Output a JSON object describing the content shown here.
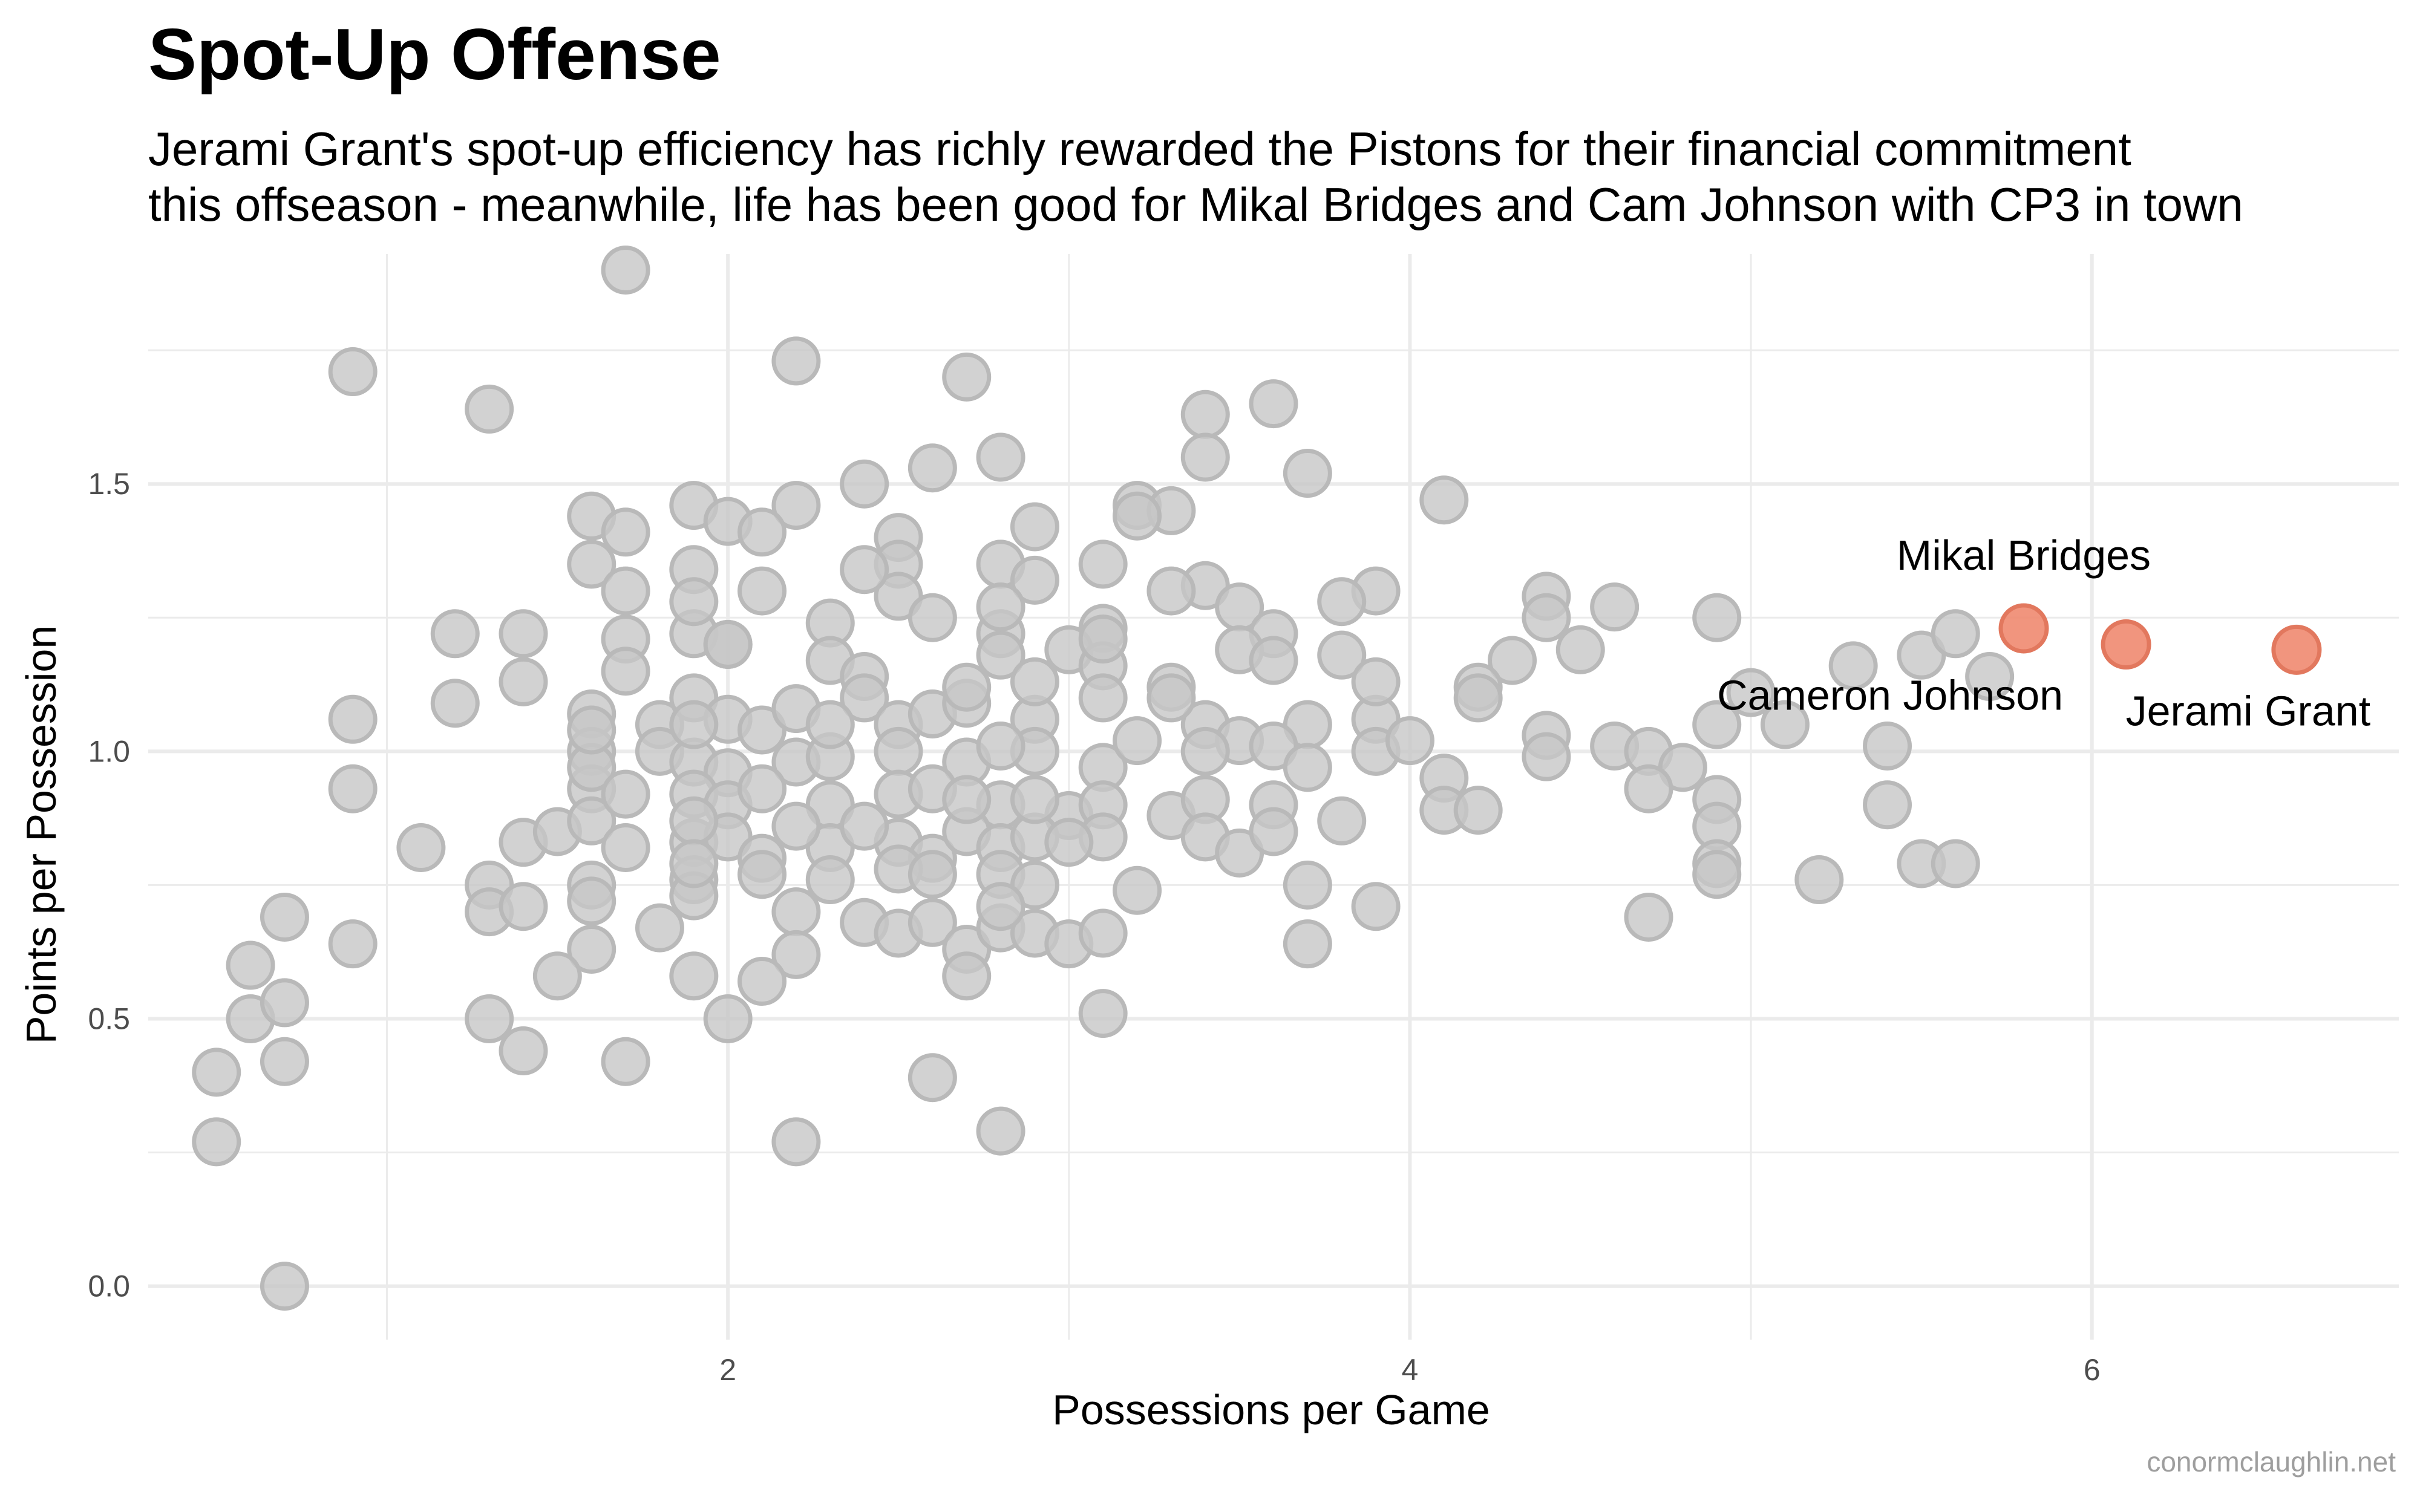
{
  "header": {
    "title": "Spot-Up Offense",
    "subtitle_line1": "Jerami Grant's spot-up efficiency has richly rewarded the Pistons for their financial commitment",
    "subtitle_line2": "this offseason - meanwhile, life has been good for Mikal Bridges and Cam Johnson with CP3 in town"
  },
  "caption": "conormclaughlin.net",
  "colors": {
    "points": "#c7c7c7",
    "point_stroke": "#b9b9b9",
    "highlight": "#f08a70",
    "highlight_stroke": "#e2785e",
    "grid": "#ebebeb",
    "axis_text": "#4d4d4d"
  },
  "chart_data": {
    "type": "scatter",
    "title": "Spot-Up Offense",
    "xlabel": "Possessions per Game",
    "ylabel": "Points per Possession",
    "xlim": [
      0.3,
      6.9
    ],
    "ylim": [
      -0.1,
      1.93
    ],
    "x_ticks": [
      2,
      4,
      6
    ],
    "y_ticks": [
      0.0,
      0.5,
      1.0,
      1.5
    ],
    "x_tick_labels": [
      "2",
      "4",
      "6"
    ],
    "y_tick_labels": [
      "0.0",
      "0.5",
      "1.0",
      "1.5"
    ],
    "grid": true,
    "legend": "none",
    "series": [
      {
        "points": [
          [
            1.7,
            1.9
          ],
          [
            0.9,
            1.71
          ],
          [
            2.2,
            1.73
          ],
          [
            1.3,
            1.64
          ],
          [
            2.7,
            1.7
          ],
          [
            3.6,
            1.65
          ],
          [
            3.4,
            1.63
          ],
          [
            2.8,
            1.55
          ],
          [
            2.4,
            1.5
          ],
          [
            2.6,
            1.53
          ],
          [
            3.4,
            1.55
          ],
          [
            3.7,
            1.52
          ],
          [
            4.1,
            1.47
          ],
          [
            1.9,
            1.46
          ],
          [
            2.0,
            1.43
          ],
          [
            2.2,
            1.46
          ],
          [
            1.6,
            1.44
          ],
          [
            1.7,
            1.41
          ],
          [
            2.1,
            1.41
          ],
          [
            2.5,
            1.4
          ],
          [
            2.9,
            1.42
          ],
          [
            3.2,
            1.46
          ],
          [
            3.3,
            1.45
          ],
          [
            3.2,
            1.44
          ],
          [
            1.6,
            1.35
          ],
          [
            1.9,
            1.34
          ],
          [
            2.5,
            1.35
          ],
          [
            2.8,
            1.35
          ],
          [
            3.1,
            1.35
          ],
          [
            3.4,
            1.31
          ],
          [
            1.7,
            1.3
          ],
          [
            2.1,
            1.3
          ],
          [
            2.5,
            1.29
          ],
          [
            2.9,
            1.32
          ],
          [
            3.3,
            1.3
          ],
          [
            3.9,
            1.3
          ],
          [
            4.4,
            1.29
          ],
          [
            4.6,
            1.27
          ],
          [
            3.5,
            1.27
          ],
          [
            3.8,
            1.28
          ],
          [
            1.2,
            1.22
          ],
          [
            1.4,
            1.22
          ],
          [
            1.7,
            1.21
          ],
          [
            1.9,
            1.22
          ],
          [
            2.3,
            1.24
          ],
          [
            2.6,
            1.25
          ],
          [
            2.8,
            1.22
          ],
          [
            3.1,
            1.23
          ],
          [
            3.6,
            1.22
          ],
          [
            4.4,
            1.25
          ],
          [
            4.9,
            1.25
          ],
          [
            1.7,
            1.15
          ],
          [
            2.0,
            1.2
          ],
          [
            2.3,
            1.17
          ],
          [
            2.4,
            1.14
          ],
          [
            2.8,
            1.18
          ],
          [
            3.0,
            1.19
          ],
          [
            3.1,
            1.16
          ],
          [
            3.5,
            1.19
          ],
          [
            3.6,
            1.17
          ],
          [
            3.8,
            1.18
          ],
          [
            4.3,
            1.17
          ],
          [
            4.5,
            1.19
          ],
          [
            5.0,
            1.11
          ],
          [
            5.3,
            1.16
          ],
          [
            5.5,
            1.18
          ],
          [
            5.6,
            1.22
          ],
          [
            5.7,
            1.14
          ],
          [
            1.4,
            1.13
          ],
          [
            1.6,
            1.07
          ],
          [
            1.8,
            1.05
          ],
          [
            1.9,
            1.1
          ],
          [
            2.0,
            1.06
          ],
          [
            2.1,
            1.04
          ],
          [
            2.2,
            1.08
          ],
          [
            2.4,
            1.1
          ],
          [
            2.5,
            1.05
          ],
          [
            2.6,
            1.07
          ],
          [
            2.7,
            1.09
          ],
          [
            2.9,
            1.06
          ],
          [
            3.1,
            1.1
          ],
          [
            3.3,
            1.12
          ],
          [
            3.4,
            1.05
          ],
          [
            3.5,
            1.02
          ],
          [
            3.7,
            1.05
          ],
          [
            3.9,
            1.06
          ],
          [
            4.2,
            1.12
          ],
          [
            4.2,
            1.1
          ],
          [
            5.1,
            1.05
          ],
          [
            0.9,
            1.06
          ],
          [
            1.2,
            1.09
          ],
          [
            1.6,
            1.0
          ],
          [
            1.8,
            1.0
          ],
          [
            1.9,
            0.98
          ],
          [
            2.0,
            0.96
          ],
          [
            2.2,
            0.98
          ],
          [
            2.3,
            0.99
          ],
          [
            2.5,
            1.0
          ],
          [
            2.7,
            0.98
          ],
          [
            2.9,
            1.0
          ],
          [
            3.1,
            0.97
          ],
          [
            3.2,
            1.02
          ],
          [
            3.4,
            1.0
          ],
          [
            3.6,
            1.01
          ],
          [
            3.7,
            0.97
          ],
          [
            3.9,
            1.0
          ],
          [
            4.0,
            1.02
          ],
          [
            4.4,
            1.03
          ],
          [
            4.4,
            0.99
          ],
          [
            4.6,
            1.01
          ],
          [
            4.7,
            1.0
          ],
          [
            4.8,
            0.97
          ],
          [
            4.9,
            1.05
          ],
          [
            5.4,
            1.01
          ],
          [
            0.9,
            0.93
          ],
          [
            1.6,
            0.93
          ],
          [
            1.9,
            0.92
          ],
          [
            2.0,
            0.9
          ],
          [
            2.1,
            0.93
          ],
          [
            2.3,
            0.9
          ],
          [
            2.5,
            0.92
          ],
          [
            2.6,
            0.93
          ],
          [
            2.8,
            0.9
          ],
          [
            3.0,
            0.88
          ],
          [
            3.1,
            0.9
          ],
          [
            3.3,
            0.88
          ],
          [
            3.4,
            0.91
          ],
          [
            3.6,
            0.9
          ],
          [
            3.8,
            0.87
          ],
          [
            4.1,
            0.95
          ],
          [
            4.1,
            0.89
          ],
          [
            4.2,
            0.89
          ],
          [
            4.7,
            0.93
          ],
          [
            4.9,
            0.91
          ],
          [
            5.4,
            0.9
          ],
          [
            1.1,
            0.82
          ],
          [
            1.4,
            0.83
          ],
          [
            1.5,
            0.85
          ],
          [
            1.6,
            0.87
          ],
          [
            1.7,
            0.82
          ],
          [
            1.9,
            0.83
          ],
          [
            2.0,
            0.84
          ],
          [
            2.1,
            0.8
          ],
          [
            2.3,
            0.82
          ],
          [
            2.5,
            0.83
          ],
          [
            2.6,
            0.8
          ],
          [
            2.7,
            0.85
          ],
          [
            2.8,
            0.82
          ],
          [
            2.9,
            0.84
          ],
          [
            3.1,
            0.84
          ],
          [
            3.4,
            0.84
          ],
          [
            3.5,
            0.81
          ],
          [
            3.6,
            0.85
          ],
          [
            4.9,
            0.86
          ],
          [
            1.3,
            0.75
          ],
          [
            1.6,
            0.75
          ],
          [
            1.9,
            0.76
          ],
          [
            2.1,
            0.77
          ],
          [
            2.3,
            0.76
          ],
          [
            2.5,
            0.78
          ],
          [
            2.6,
            0.77
          ],
          [
            2.8,
            0.77
          ],
          [
            2.9,
            0.75
          ],
          [
            3.7,
            0.75
          ],
          [
            4.9,
            0.79
          ],
          [
            4.9,
            0.77
          ],
          [
            5.2,
            0.76
          ],
          [
            5.5,
            0.79
          ],
          [
            5.6,
            0.79
          ],
          [
            1.3,
            0.7
          ],
          [
            1.4,
            0.71
          ],
          [
            1.6,
            0.72
          ],
          [
            1.8,
            0.67
          ],
          [
            1.9,
            0.73
          ],
          [
            2.2,
            0.7
          ],
          [
            2.4,
            0.68
          ],
          [
            2.5,
            0.66
          ],
          [
            2.6,
            0.68
          ],
          [
            2.7,
            0.63
          ],
          [
            2.8,
            0.67
          ],
          [
            2.9,
            0.66
          ],
          [
            3.0,
            0.64
          ],
          [
            3.1,
            0.66
          ],
          [
            3.2,
            0.74
          ],
          [
            3.7,
            0.64
          ],
          [
            3.9,
            0.71
          ],
          [
            4.7,
            0.69
          ],
          [
            0.7,
            0.69
          ],
          [
            0.9,
            0.64
          ],
          [
            1.6,
            0.63
          ],
          [
            2.2,
            0.62
          ],
          [
            2.7,
            0.58
          ],
          [
            0.6,
            0.6
          ],
          [
            0.6,
            0.5
          ],
          [
            0.7,
            0.53
          ],
          [
            0.7,
            0.42
          ],
          [
            1.3,
            0.5
          ],
          [
            1.5,
            0.58
          ],
          [
            1.9,
            0.58
          ],
          [
            2.0,
            0.5
          ],
          [
            2.1,
            0.57
          ],
          [
            3.1,
            0.51
          ],
          [
            1.4,
            0.44
          ],
          [
            1.7,
            0.42
          ],
          [
            0.5,
            0.4
          ],
          [
            2.6,
            0.39
          ],
          [
            0.5,
            0.27
          ],
          [
            2.2,
            0.27
          ],
          [
            2.8,
            0.29
          ],
          [
            0.7,
            0.0
          ],
          [
            3.9,
            1.13
          ],
          [
            2.0,
            1.2
          ],
          [
            2.8,
            1.27
          ],
          [
            3.1,
            1.21
          ],
          [
            2.7,
            1.12
          ],
          [
            2.9,
            1.13
          ],
          [
            1.9,
            1.05
          ],
          [
            2.3,
            1.05
          ],
          [
            2.8,
            1.01
          ],
          [
            3.3,
            1.1
          ],
          [
            1.9,
            0.87
          ],
          [
            2.4,
            0.86
          ],
          [
            2.9,
            0.91
          ],
          [
            2.2,
            0.86
          ],
          [
            2.7,
            0.91
          ],
          [
            1.9,
            0.79
          ],
          [
            2.8,
            0.71
          ],
          [
            1.6,
            0.97
          ],
          [
            2.4,
            1.34
          ],
          [
            1.9,
            1.28
          ],
          [
            1.6,
            1.04
          ],
          [
            3.0,
            0.83
          ],
          [
            1.7,
            0.92
          ]
        ]
      },
      {
        "name": "highlighted",
        "points": [
          {
            "label": "Mikal Bridges",
            "x": 5.8,
            "y": 1.23
          },
          {
            "label": "Cameron Johnson",
            "x": 6.1,
            "y": 1.2
          },
          {
            "label": "Jerami Grant",
            "x": 6.6,
            "y": 1.19
          }
        ]
      }
    ]
  }
}
